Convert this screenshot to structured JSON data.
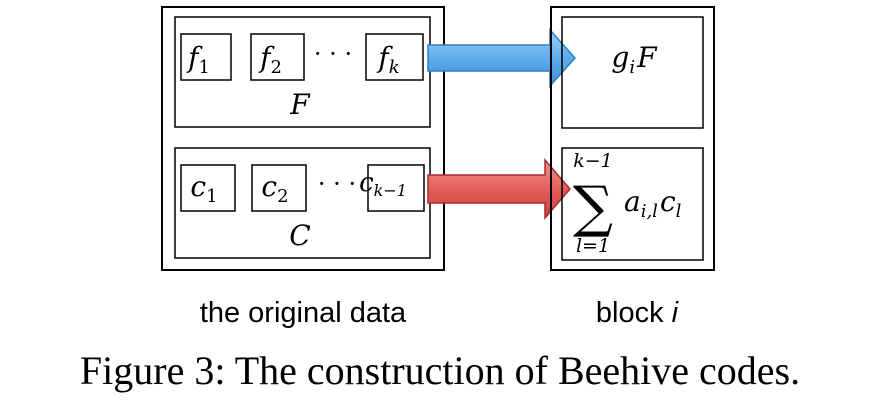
{
  "original_data": {
    "label": "the original data",
    "top_group": {
      "items": [
        {
          "base": "f",
          "sub": "1"
        },
        {
          "base": "f",
          "sub": "2"
        },
        {
          "base": "f",
          "sub": "k"
        }
      ],
      "ellipsis": "· · ·",
      "name": "F"
    },
    "bottom_group": {
      "items": [
        {
          "base": "c",
          "sub": "1"
        },
        {
          "base": "c",
          "sub": "2"
        },
        {
          "base": "c",
          "sub": "k−1"
        }
      ],
      "ellipsis": "· · ·",
      "name": "C"
    }
  },
  "block": {
    "label_prefix": "block",
    "label_var": "i",
    "top_cell": {
      "g": "g",
      "sub": "i",
      "F": "F"
    },
    "bottom_cell": {
      "sum_upper": "k−1",
      "sum_symbol": "∑",
      "sum_lower": "l=1",
      "term_a": "a",
      "term_a_sub": "i,l",
      "term_c": "c",
      "term_c_sub": "l"
    }
  },
  "arrows": {
    "top_color": "#6db3ee",
    "bottom_color": "#e05a55"
  },
  "caption": "Figure 3: The construction of Beehive codes."
}
